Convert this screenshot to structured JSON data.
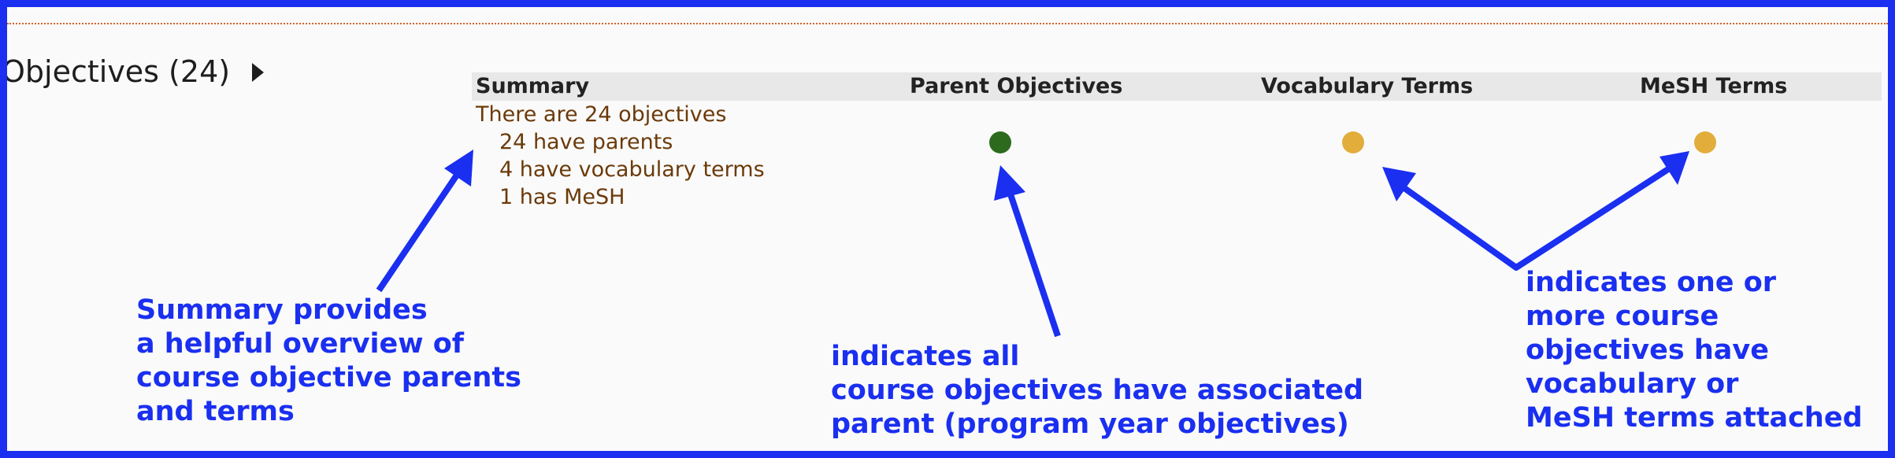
{
  "section": {
    "title": "Objectives (24)"
  },
  "table": {
    "headers": {
      "summary": "Summary",
      "parent": "Parent Objectives",
      "vocabulary": "Vocabulary Terms",
      "mesh": "MeSH Terms"
    },
    "summary_lines": {
      "total": "There are 24 objectives",
      "parents": "24 have parents",
      "vocabulary": "4 have vocabulary terms",
      "mesh": "1 has MeSH"
    },
    "indicators": {
      "parent": {
        "icon": "status-dot-icon",
        "status": "complete",
        "color": "#2d6a1e"
      },
      "vocabulary": {
        "icon": "status-dot-icon",
        "status": "partial",
        "color": "#e2ad3a"
      },
      "mesh": {
        "icon": "status-dot-icon",
        "status": "partial",
        "color": "#e2ad3a"
      }
    }
  },
  "annotations": {
    "summary": [
      "Summary provides",
      "a helpful overview of",
      "course objective parents",
      "and terms"
    ],
    "parent": [
      "indicates all",
      "course objectives have associated",
      "parent (program year objectives)"
    ],
    "terms": [
      "indicates one or",
      "more course",
      "objectives have",
      "vocabulary or",
      "MeSH terms attached"
    ]
  },
  "colors": {
    "annotation_blue": "#1a2ff0",
    "summary_text": "#6b3a0a",
    "complete_green": "#2d6a1e",
    "partial_gold": "#e2ad3a"
  }
}
